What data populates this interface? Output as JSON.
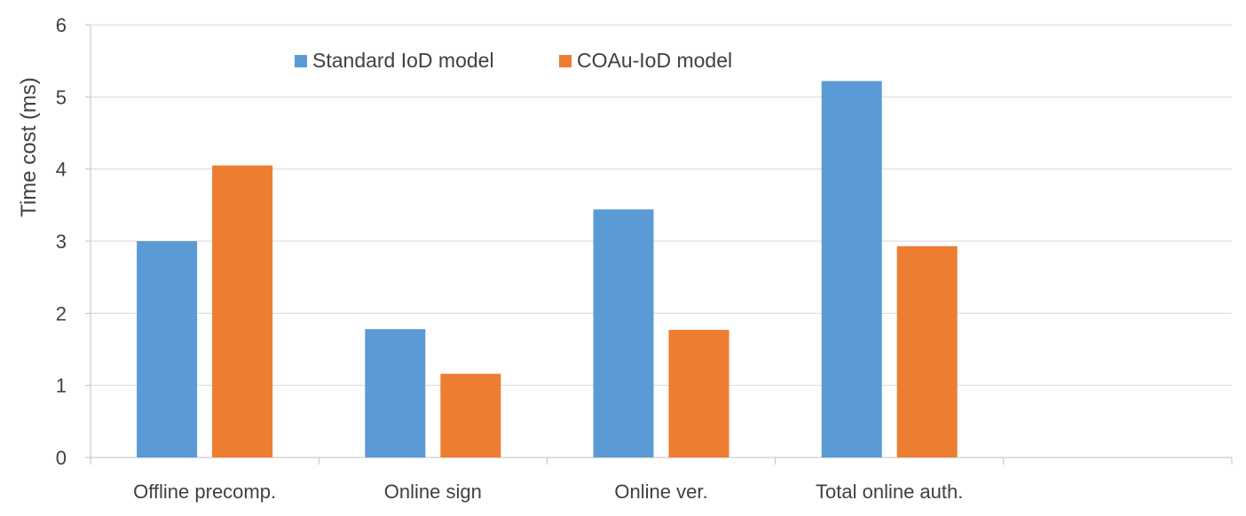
{
  "chart_data": {
    "type": "bar",
    "title": "",
    "xlabel": "",
    "ylabel": "Time cost (ms)",
    "ylim": [
      0,
      6
    ],
    "yticks": [
      0,
      1,
      2,
      3,
      4,
      5,
      6
    ],
    "grid": true,
    "legend_position": "top-center",
    "categories": [
      "Offline precomp.",
      "Online sign",
      "Online ver.",
      "Total online auth.",
      ""
    ],
    "series": [
      {
        "name": "Standard IoD model",
        "color": "#5B9BD5",
        "values": [
          3.0,
          1.78,
          3.44,
          5.22,
          null
        ]
      },
      {
        "name": "COAu-IoD model",
        "color": "#ED7D31",
        "values": [
          4.05,
          1.16,
          1.77,
          2.93,
          null
        ]
      }
    ]
  }
}
